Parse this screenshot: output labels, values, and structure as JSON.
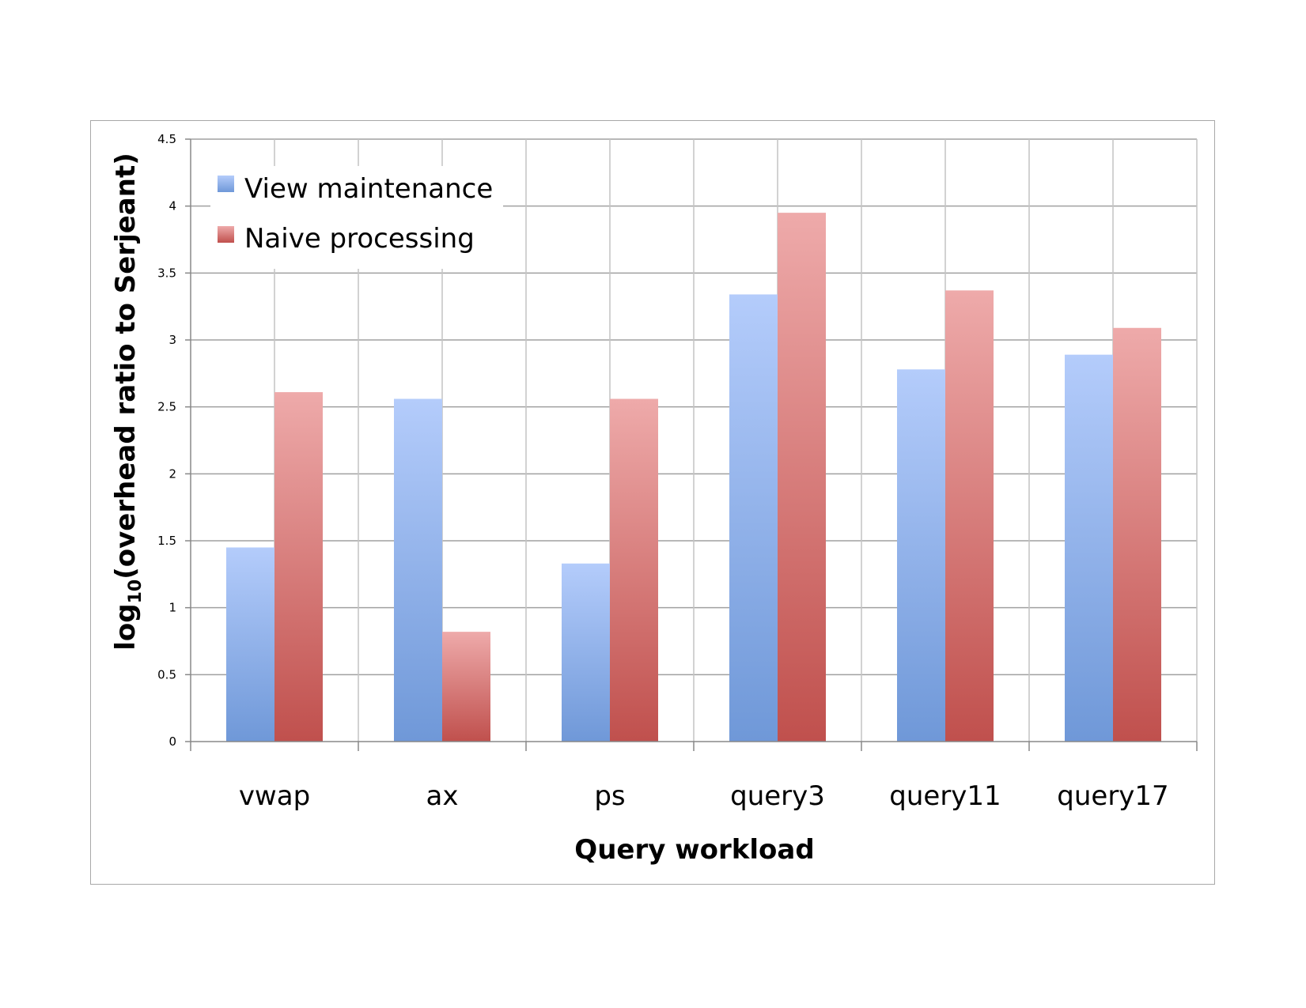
{
  "chart_data": {
    "type": "bar",
    "title": "",
    "xlabel": "Query workload",
    "ylabel": "log10(overhead ratio to Serjeant)",
    "ylabel_parts": {
      "prefix": "log",
      "subscript": "10",
      "suffix": "(overhead ratio to Serjeant)"
    },
    "categories": [
      "vwap",
      "ax",
      "ps",
      "query3",
      "query11",
      "query17"
    ],
    "series": [
      {
        "name": "View maintenance",
        "values": [
          1.45,
          2.56,
          1.33,
          3.34,
          2.78,
          2.89
        ],
        "color": "#6f98d8",
        "color_light": "#b4ccfb"
      },
      {
        "name": "Naive processing",
        "values": [
          2.61,
          0.82,
          2.56,
          3.95,
          3.37,
          3.09
        ],
        "color": "#c0504d",
        "color_light": "#eeaaaa"
      }
    ],
    "ylim": [
      0,
      4.5
    ],
    "yticks": [
      "0",
      "0.5",
      "1",
      "1.5",
      "2",
      "2.5",
      "3",
      "3.5",
      "4",
      "4.5"
    ],
    "grid": true,
    "legend_position": "top-left"
  }
}
